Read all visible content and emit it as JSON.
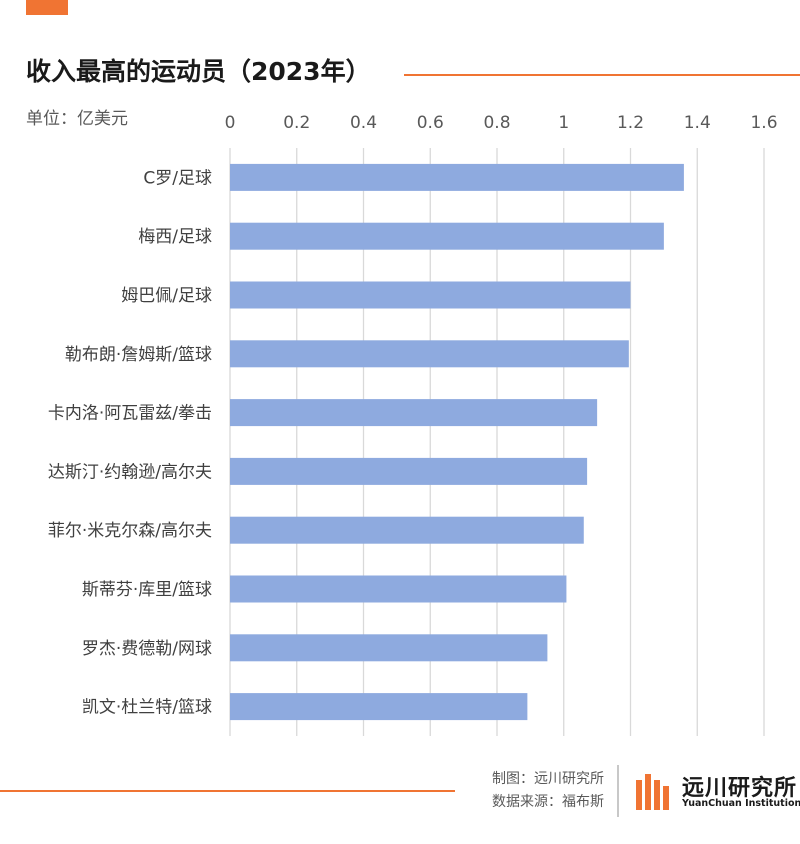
{
  "header": {
    "title": "收入最高的运动员（2023年）",
    "unit_label": "单位：亿美元"
  },
  "footer": {
    "made_by": "制图：远川研究所",
    "source": "数据来源：福布斯",
    "logo_name": "远川研究所",
    "logo_en": "YuanChuan Institution"
  },
  "colors": {
    "accent": "#f07433",
    "bar": "#8eaadf",
    "grid": "#d9d9d9"
  },
  "chart_data": {
    "type": "bar",
    "orientation": "horizontal",
    "categories": [
      "C罗/足球",
      "梅西/足球",
      "姆巴佩/足球",
      "勒布朗·詹姆斯/篮球",
      "卡内洛·阿瓦雷兹/拳击",
      "达斯汀·约翰逊/高尔夫",
      "菲尔·米克尔森/高尔夫",
      "斯蒂芬·库里/篮球",
      "罗杰·费德勒/网球",
      "凯文·杜兰特/篮球"
    ],
    "values": [
      1.36,
      1.3,
      1.2,
      1.195,
      1.1,
      1.07,
      1.06,
      1.008,
      0.951,
      0.891
    ],
    "xlim": [
      0,
      1.6
    ],
    "xticks": [
      "0",
      "0.2",
      "0.4",
      "0.6",
      "0.8",
      "1",
      "1.2",
      "1.4",
      "1.6"
    ],
    "grid": true,
    "x_axis_position": "top"
  }
}
